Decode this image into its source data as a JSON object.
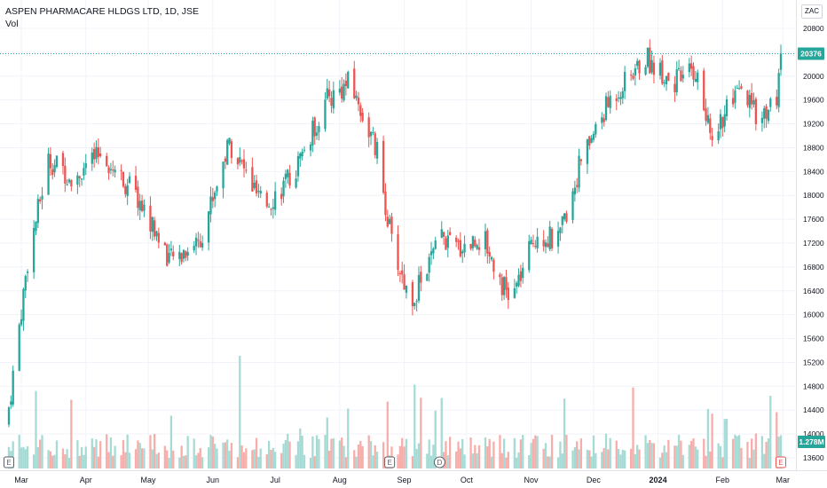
{
  "header": {
    "symbol_title": "ASPEN PHARMACARE HLDGS LTD, 1D, JSE",
    "volume_label": "Vol",
    "currency": "ZAC"
  },
  "colors": {
    "up": "#26a69a",
    "down": "#ef5350",
    "vol_up": "#a6dbd5",
    "vol_down": "#f7adaa",
    "grid": "#f0f3fa",
    "price_line": "#26a69a"
  },
  "price_axis": {
    "ticks": [
      "20800",
      "20400",
      "20000",
      "19600",
      "19200",
      "18800",
      "18400",
      "18000",
      "17600",
      "17200",
      "16800",
      "16400",
      "16000",
      "15600",
      "15200",
      "14800",
      "14400",
      "14000",
      "13600"
    ]
  },
  "current_price_label": "20376",
  "current_volume_label": "1.278M",
  "time_axis": {
    "labels": [
      "Mar",
      "Apr",
      "May",
      "Jun",
      "Jul",
      "Aug",
      "Sep",
      "Oct",
      "Nov",
      "Dec",
      "2024",
      "Feb",
      "Mar"
    ]
  },
  "event_markers": [
    {
      "label": "E",
      "type": "earnings"
    },
    {
      "label": "E",
      "type": "earnings"
    },
    {
      "label": "D",
      "type": "dividend"
    },
    {
      "label": "E",
      "type": "earnings"
    }
  ],
  "chart_data": {
    "type": "candlestick",
    "title": "ASPEN PHARMACARE HLDGS LTD, 1D, JSE",
    "y_unit": "ZAC",
    "ylim": [
      13400,
      21100
    ],
    "x_range": [
      "2023-03-01",
      "2024-03-06"
    ],
    "last_price": 20376,
    "last_volume": "1.278M",
    "grid": true,
    "legend_position": "top-left",
    "key_points": [
      {
        "date": "2023-03-01",
        "close": 14450
      },
      {
        "date": "2023-03-10",
        "close": 16900
      },
      {
        "date": "2023-03-20",
        "close": 18600
      },
      {
        "date": "2023-04-01",
        "close": 18300
      },
      {
        "date": "2023-04-15",
        "close": 18700
      },
      {
        "date": "2023-05-01",
        "close": 18000
      },
      {
        "date": "2023-05-18",
        "close": 16900
      },
      {
        "date": "2023-06-01",
        "close": 17300
      },
      {
        "date": "2023-06-15",
        "close": 18900
      },
      {
        "date": "2023-07-01",
        "close": 17800
      },
      {
        "date": "2023-07-15",
        "close": 18300
      },
      {
        "date": "2023-08-01",
        "close": 19600
      },
      {
        "date": "2023-08-12",
        "close": 19900
      },
      {
        "date": "2023-08-25",
        "close": 18700
      },
      {
        "date": "2023-09-01",
        "close": 17200
      },
      {
        "date": "2023-09-10",
        "close": 16200
      },
      {
        "date": "2023-09-25",
        "close": 17300
      },
      {
        "date": "2023-10-01",
        "close": 17100
      },
      {
        "date": "2023-10-15",
        "close": 17300
      },
      {
        "date": "2023-10-28",
        "close": 16200
      },
      {
        "date": "2023-11-10",
        "close": 17400
      },
      {
        "date": "2023-11-20",
        "close": 17200
      },
      {
        "date": "2023-12-01",
        "close": 18600
      },
      {
        "date": "2023-12-15",
        "close": 19600
      },
      {
        "date": "2024-01-01",
        "close": 20300
      },
      {
        "date": "2024-01-15",
        "close": 19900
      },
      {
        "date": "2024-01-25",
        "close": 20100
      },
      {
        "date": "2024-02-01",
        "close": 19000
      },
      {
        "date": "2024-02-15",
        "close": 19700
      },
      {
        "date": "2024-02-25",
        "close": 19300
      },
      {
        "date": "2024-03-04",
        "close": 19600
      },
      {
        "date": "2024-03-06",
        "close": 20376
      }
    ]
  }
}
